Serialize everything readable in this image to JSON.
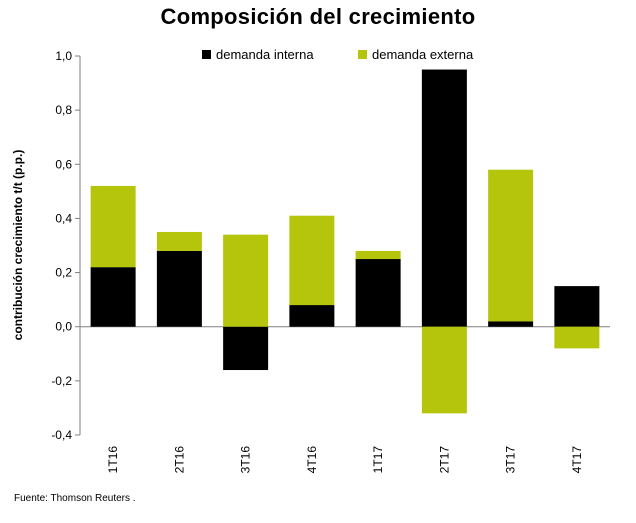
{
  "chart_data": {
    "type": "bar",
    "stacked": true,
    "title": "Composición del crecimiento",
    "ylabel": "contribución crecimiento t/t (p.p.)",
    "xlabel": "",
    "ylim": [
      -0.4,
      1.0
    ],
    "yticks": [
      -0.4,
      -0.2,
      0.0,
      0.2,
      0.4,
      0.6,
      0.8,
      1.0
    ],
    "ytick_labels": [
      "-0,4",
      "-0,2",
      "0,0",
      "0,2",
      "0,4",
      "0,6",
      "0,8",
      "1,0"
    ],
    "categories": [
      "1T16",
      "2T16",
      "3T16",
      "4T16",
      "1T17",
      "2T17",
      "3T17",
      "4T17"
    ],
    "series": [
      {
        "name": "demanda interna",
        "color": "#000000",
        "values": [
          0.22,
          0.28,
          -0.16,
          0.08,
          0.25,
          0.95,
          0.02,
          0.15
        ]
      },
      {
        "name": "demanda externa",
        "color": "#b5c50c",
        "values": [
          0.3,
          0.07,
          0.34,
          0.33,
          0.03,
          -0.32,
          0.56,
          -0.08
        ]
      }
    ],
    "legend_position": "top",
    "grid": false
  },
  "footer": {
    "source": "Fuente: Thomson Reuters ."
  }
}
